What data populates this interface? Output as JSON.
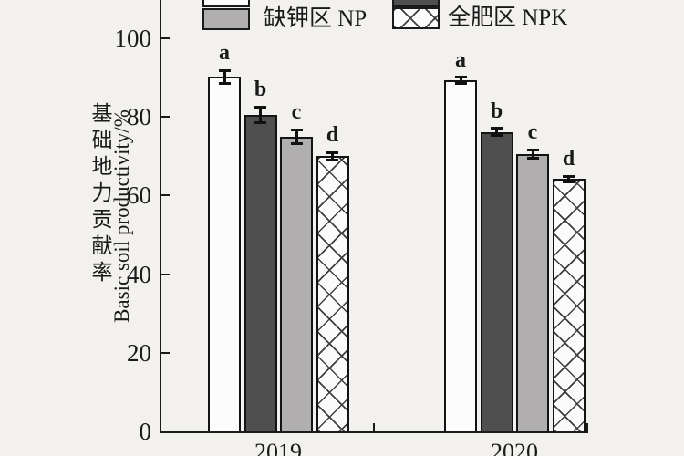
{
  "figure": {
    "background": "#f3f1ee",
    "axis_color": "#1a1a1a",
    "bar_white": "#fcfcfc",
    "bar_dark_gray": "#4f4f4f",
    "bar_light_gray": "#b0aeae"
  },
  "legend": {
    "partial_top_row": [
      {
        "name": "unlabeled-white-swatch",
        "fill": "#fcfcfc"
      },
      {
        "name": "unlabeled-dark-swatch",
        "fill": "#4f4f4f"
      }
    ],
    "items": [
      {
        "label": "缺钾区 NP",
        "style": "light-gray"
      },
      {
        "label": "全肥区 NPK",
        "style": "crosshatch"
      }
    ]
  },
  "y_axis": {
    "label_zh": "基础地力贡献率",
    "label_en": "Basic soil productivity/%",
    "ticks": [
      100,
      80,
      60,
      40,
      20,
      0
    ]
  },
  "x_axis": {
    "categories": [
      "2019",
      "2020"
    ]
  },
  "chart_data": {
    "type": "bar",
    "title": "",
    "ylabel": "基础地力贡献率 Basic soil productivity/%",
    "ylim": [
      0,
      110
    ],
    "yticks": [
      0,
      20,
      40,
      60,
      80,
      100
    ],
    "grid": false,
    "error_bars": true,
    "legend_position": "top (partially cropped)",
    "categories": [
      "2019",
      "2020"
    ],
    "series": [
      {
        "name": "unlabeled-white (legend cropped)",
        "pattern": "white",
        "values": [
          90.2,
          89.3
        ],
        "errors": [
          1.6,
          0.8
        ],
        "sig_letters": [
          "a",
          "a"
        ]
      },
      {
        "name": "unlabeled-dark (legend cropped)",
        "pattern": "dark-gray",
        "values": [
          80.6,
          76.2
        ],
        "errors": [
          2.0,
          0.9
        ],
        "sig_letters": [
          "b",
          "b"
        ]
      },
      {
        "name": "缺钾区 NP",
        "pattern": "light-gray",
        "values": [
          75.0,
          70.6
        ],
        "errors": [
          1.8,
          1.0
        ],
        "sig_letters": [
          "c",
          "c"
        ]
      },
      {
        "name": "全肥区 NPK",
        "pattern": "crosshatch",
        "values": [
          70.0,
          64.2
        ],
        "errors": [
          0.9,
          0.7
        ],
        "sig_letters": [
          "d",
          "d"
        ]
      }
    ]
  }
}
